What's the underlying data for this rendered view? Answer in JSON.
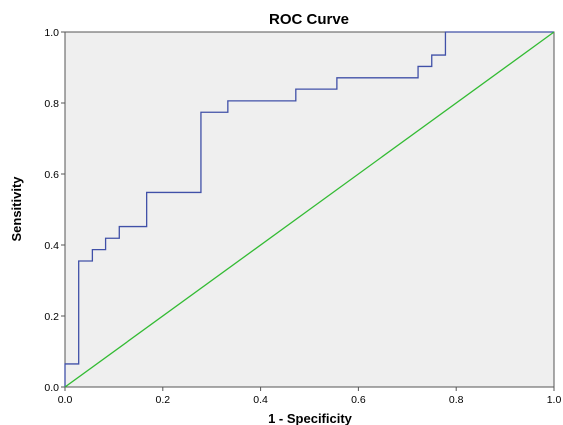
{
  "chart_data": {
    "type": "line",
    "title": "ROC Curve",
    "xlabel": "1 - Specificity",
    "ylabel": "Sensitivity",
    "xlim": [
      0.0,
      1.0
    ],
    "ylim": [
      0.0,
      1.0
    ],
    "x_ticks": [
      "0.0",
      "0.2",
      "0.4",
      "0.6",
      "0.8",
      "1.0"
    ],
    "y_ticks": [
      "0.0",
      "0.2",
      "0.4",
      "0.6",
      "0.8",
      "1.0"
    ],
    "grid": false,
    "legend": "none",
    "plot_background": "#efefef",
    "series": [
      {
        "color": "#4050a8",
        "x": [
          0.0,
          0.0,
          0.028,
          0.028,
          0.056,
          0.056,
          0.083,
          0.083,
          0.111,
          0.111,
          0.167,
          0.167,
          0.278,
          0.278,
          0.333,
          0.333,
          0.472,
          0.472,
          0.556,
          0.556,
          0.722,
          0.722,
          0.75,
          0.75,
          0.778,
          0.778,
          1.0
        ],
        "y": [
          0.0,
          0.065,
          0.065,
          0.355,
          0.355,
          0.387,
          0.387,
          0.419,
          0.419,
          0.452,
          0.452,
          0.548,
          0.548,
          0.774,
          0.774,
          0.806,
          0.806,
          0.839,
          0.839,
          0.871,
          0.871,
          0.903,
          0.903,
          0.935,
          0.935,
          1.0,
          1.0
        ]
      },
      {
        "color": "#33bb33",
        "x": [
          0.0,
          1.0
        ],
        "y": [
          0.0,
          1.0
        ]
      }
    ]
  }
}
